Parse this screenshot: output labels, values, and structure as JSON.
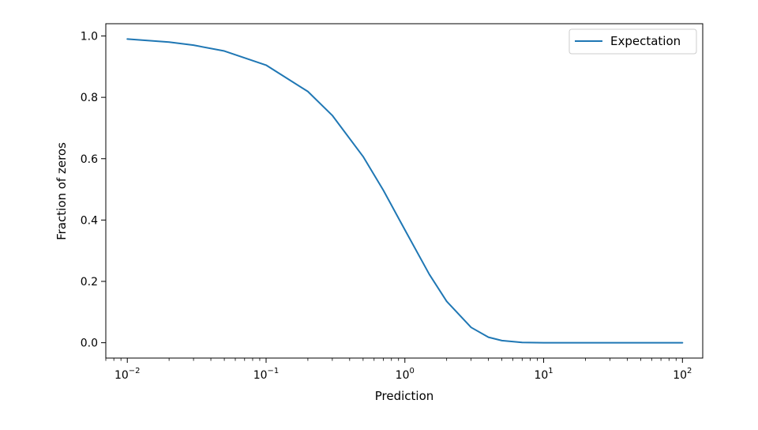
{
  "chart_data": {
    "type": "line",
    "title": "",
    "xlabel": "Prediction",
    "ylabel": "Fraction of zeros",
    "xscale": "log",
    "xlim": [
      0.007,
      140
    ],
    "ylim": [
      -0.05,
      1.04
    ],
    "x_ticks": [
      {
        "value": 0.01,
        "base": "10",
        "exp": "−2"
      },
      {
        "value": 0.1,
        "base": "10",
        "exp": "−1"
      },
      {
        "value": 1,
        "base": "10",
        "exp": "0"
      },
      {
        "value": 10,
        "base": "10",
        "exp": "1"
      },
      {
        "value": 100,
        "base": "10",
        "exp": "2"
      }
    ],
    "y_ticks": [
      {
        "value": 0.0,
        "label": "0.0"
      },
      {
        "value": 0.2,
        "label": "0.2"
      },
      {
        "value": 0.4,
        "label": "0.4"
      },
      {
        "value": 0.6,
        "label": "0.6"
      },
      {
        "value": 0.8,
        "label": "0.8"
      },
      {
        "value": 1.0,
        "label": "1.0"
      }
    ],
    "grid": false,
    "legend_position": "top-right",
    "series": [
      {
        "name": "Expectation",
        "color": "#1f77b4",
        "x": [
          0.01,
          0.02,
          0.03,
          0.05,
          0.1,
          0.2,
          0.3,
          0.5,
          0.7,
          1,
          1.5,
          2,
          3,
          4,
          5,
          7,
          10,
          20,
          50,
          100
        ],
        "y": [
          0.99,
          0.98,
          0.97,
          0.951,
          0.905,
          0.819,
          0.741,
          0.607,
          0.497,
          0.368,
          0.223,
          0.135,
          0.05,
          0.018,
          0.007,
          0.001,
          0.0,
          0.0,
          0.0,
          0.0
        ]
      }
    ]
  }
}
